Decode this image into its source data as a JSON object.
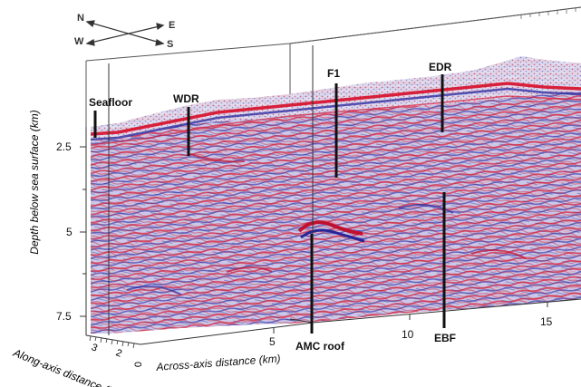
{
  "compass": {
    "north": "N",
    "east": "E",
    "west": "W",
    "south": "S"
  },
  "features": {
    "seafloor": "Seafloor",
    "wdr": "WDR",
    "f1": "F1",
    "edr": "EDR",
    "ebf": "EBF",
    "amc_roof": "AMC roof"
  },
  "axes": {
    "depth_title": "Depth below sea surface (km)",
    "depth_ticks": [
      "2.5",
      "5",
      "7.5"
    ],
    "across_title": "Across-axis distance (km)",
    "across_ticks": [
      "5",
      "10",
      "15"
    ],
    "along_title": "Along-axis distance (km)",
    "along_ticks": [
      "3",
      "2",
      "0"
    ]
  },
  "colors": {
    "reflector_red": "#d81f3a",
    "reflector_blue": "#2e2fa3",
    "background_lavender": "#c9c6e6"
  }
}
